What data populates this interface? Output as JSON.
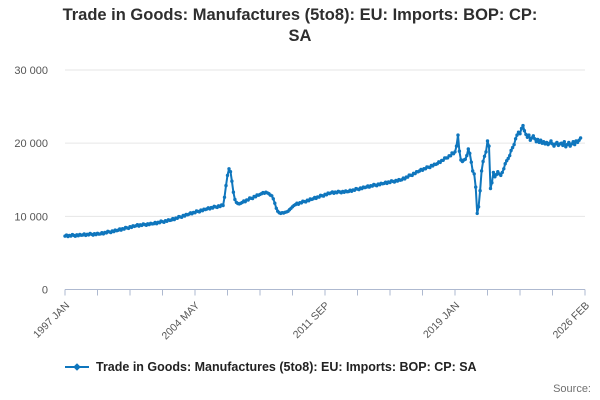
{
  "title": {
    "line1": "Trade in Goods: Manufactures (5to8): EU: Imports: BOP: CP:",
    "line2": "SA"
  },
  "legend": {
    "label": "Trade in Goods: Manufactures (5to8): EU: Imports: BOP: CP: SA"
  },
  "source_label": "Source:",
  "colors": {
    "series": "#0f76bd",
    "grid": "#e6e6e6",
    "axis": "#aeb9d0",
    "tick_label": "#555555",
    "title": "#2e2e2e",
    "source": "#707070"
  },
  "chart_data": {
    "type": "line",
    "title": "Trade in Goods: Manufactures (5to8): EU: Imports: BOP: CP: SA",
    "frequency": "monthly",
    "x_start": "1997-01",
    "x_end": "2026-02",
    "x_tick_labels": [
      "1997 JAN",
      "2004 MAY",
      "2011 SEP",
      "2019 JAN",
      "2026 FEB"
    ],
    "y_tick_values": [
      0,
      10000,
      20000,
      30000
    ],
    "y_tick_labels": [
      "0",
      "10 000",
      "20 000",
      "30 000"
    ],
    "ylim": [
      0,
      30000
    ],
    "grid": "horizontal",
    "legend_position": "bottom",
    "marker": "dot",
    "series": [
      {
        "name": "Trade in Goods: Manufactures (5to8): EU: Imports: BOP: CP: SA",
        "values": [
          7300,
          7430,
          7250,
          7400,
          7310,
          7500,
          7400,
          7290,
          7480,
          7350,
          7530,
          7420,
          7450,
          7580,
          7400,
          7550,
          7460,
          7650,
          7550,
          7440,
          7630,
          7500,
          7680,
          7570,
          7600,
          7760,
          7600,
          7790,
          7730,
          7950,
          7870,
          7790,
          8010,
          7920,
          8120,
          8040,
          8100,
          8270,
          8120,
          8310,
          8260,
          8490,
          8420,
          8350,
          8580,
          8490,
          8700,
          8630,
          8700,
          8850,
          8670,
          8840,
          8760,
          8970,
          8870,
          8780,
          8980,
          8870,
          9050,
          8960,
          9000,
          9160,
          9000,
          9190,
          9130,
          9350,
          9270,
          9190,
          9410,
          9320,
          9520,
          9440,
          9500,
          9690,
          9550,
          9760,
          9730,
          9970,
          9920,
          9870,
          10110,
          10040,
          10270,
          10210,
          10300,
          10480,
          10340,
          10540,
          10490,
          10730,
          10670,
          10610,
          10850,
          10770,
          10980,
          10920,
          11000,
          11170,
          11010,
          11200,
          11140,
          11370,
          11290,
          11220,
          11440,
          11350,
          11560,
          11480,
          12600,
          14200,
          15600,
          16500,
          16100,
          14800,
          13300,
          12300,
          11900,
          11750,
          11700,
          11800,
          11900,
          12110,
          12000,
          12240,
          12230,
          12500,
          12470,
          12440,
          12710,
          12670,
          12920,
          12890,
          13000,
          13100,
          13250,
          13150,
          13300,
          13200,
          13100,
          12900,
          12800,
          12400,
          11800,
          11100,
          10700,
          10500,
          10400,
          10500,
          10450,
          10550,
          10600,
          10700,
          10900,
          11100,
          11300,
          11500,
          11600,
          11790,
          11650,
          11860,
          11830,
          12070,
          12020,
          11970,
          12210,
          12140,
          12370,
          12310,
          12400,
          12590,
          12450,
          12660,
          12630,
          12870,
          12820,
          12770,
          13010,
          12940,
          13170,
          13110,
          13200,
          13340,
          13150,
          13310,
          13230,
          13420,
          13320,
          13220,
          13410,
          13290,
          13470,
          13360,
          13400,
          13570,
          13420,
          13610,
          13560,
          13790,
          13720,
          13650,
          13880,
          13790,
          14000,
          13930,
          14000,
          14160,
          14000,
          14190,
          14130,
          14350,
          14270,
          14190,
          14410,
          14320,
          14520,
          14440,
          14500,
          14660,
          14500,
          14690,
          14630,
          14850,
          14770,
          14690,
          14910,
          14820,
          15020,
          14940,
          15000,
          15220,
          15120,
          15360,
          15360,
          15640,
          15620,
          15600,
          15880,
          15840,
          16100,
          16080,
          16200,
          16400,
          16290,
          16510,
          16490,
          16760,
          16720,
          16680,
          16950,
          16890,
          17130,
          17100,
          17200,
          17450,
          17370,
          17640,
          17660,
          17970,
          17970,
          17980,
          18280,
          18270,
          18650,
          18560,
          18800,
          19600,
          21100,
          18900,
          17700,
          17500,
          17700,
          17800,
          18300,
          19200,
          18600,
          17400,
          16200,
          15800,
          14000,
          10400,
          11300,
          13500,
          16200,
          17500,
          18200,
          18800,
          20300,
          19600,
          13800,
          14600,
          16000,
          15400,
          15700,
          16100,
          15800,
          15600,
          16000,
          16500,
          17200,
          17600,
          17900,
          18300,
          19000,
          19400,
          19800,
          20600,
          21100,
          21500,
          21300,
          22000,
          22400,
          21700,
          21200,
          20800,
          21100,
          20400,
          20700,
          21000,
          20600,
          20200,
          20500,
          20100,
          20400,
          20000,
          20200,
          19900,
          20100,
          19800,
          20000,
          20300,
          19900,
          19600,
          19900,
          20100,
          19700,
          19900,
          20000,
          19700,
          20200,
          19500,
          19800,
          20100,
          19600,
          19900,
          20200,
          19800,
          20300,
          20100,
          20400,
          20700
        ]
      }
    ]
  }
}
